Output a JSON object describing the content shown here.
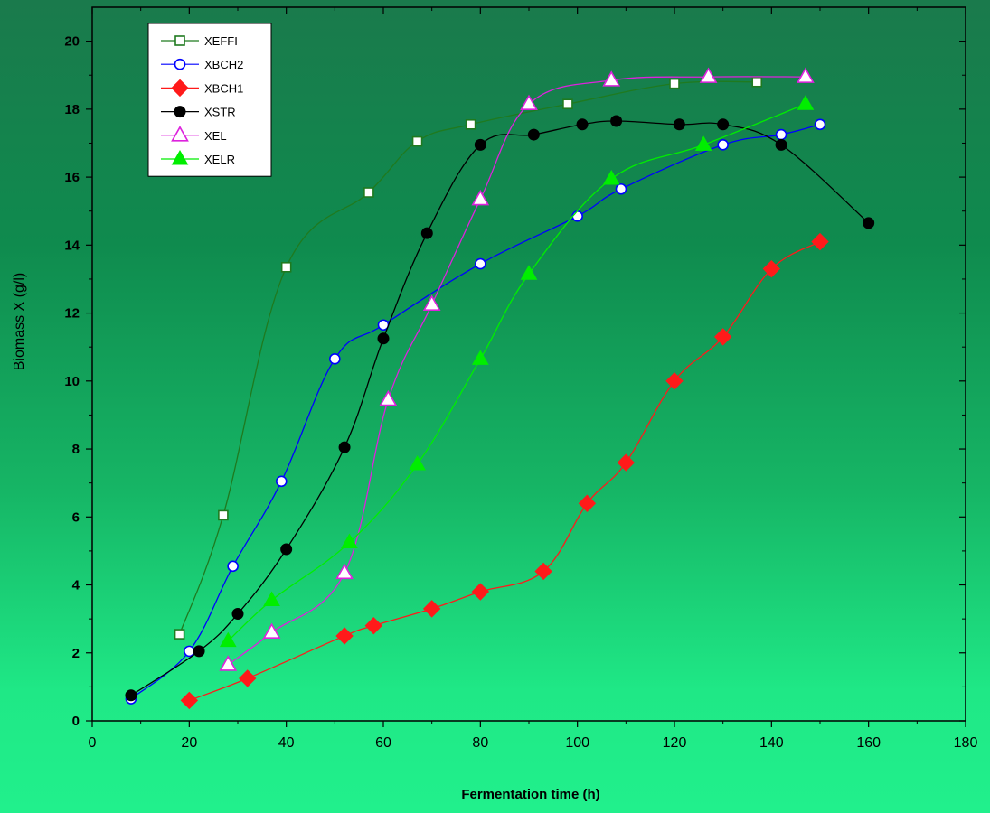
{
  "chart_data": {
    "type": "line",
    "title": "",
    "xlabel": "Fermentation time (h)",
    "ylabel": "Biomass X (g/l)",
    "xlim": [
      0,
      180
    ],
    "ylim": [
      0,
      21
    ],
    "x_ticks": [
      "0",
      "20",
      "40",
      "60",
      "80",
      "100",
      "120",
      "140",
      "160",
      "180"
    ],
    "y_ticks": [
      "0",
      "2",
      "4",
      "6",
      "8",
      "10",
      "12",
      "14",
      "16",
      "18",
      "20"
    ],
    "grid": false,
    "legend_position": "top-left",
    "series": [
      {
        "name": "XEFFI",
        "color": "#1f7a1f",
        "marker": "square-open",
        "points": [
          [
            18,
            2.55
          ],
          [
            27,
            6.05
          ],
          [
            40,
            13.35
          ],
          [
            57,
            15.55
          ],
          [
            67,
            17.05
          ],
          [
            78,
            17.55
          ],
          [
            98,
            18.15
          ],
          [
            120,
            18.75
          ],
          [
            137,
            18.8
          ]
        ]
      },
      {
        "name": "XBCH2",
        "color": "#0000ff",
        "marker": "circle-open",
        "points": [
          [
            8,
            0.65
          ],
          [
            20,
            2.05
          ],
          [
            29,
            4.55
          ],
          [
            39,
            7.05
          ],
          [
            50,
            10.65
          ],
          [
            60,
            11.65
          ],
          [
            80,
            13.45
          ],
          [
            100,
            14.85
          ],
          [
            109,
            15.65
          ],
          [
            130,
            16.95
          ],
          [
            142,
            17.25
          ],
          [
            150,
            17.55
          ]
        ]
      },
      {
        "name": "XBCH1",
        "color": "#ff1a1a",
        "marker": "diamond-filled",
        "points": [
          [
            20,
            0.6
          ],
          [
            32,
            1.25
          ],
          [
            52,
            2.5
          ],
          [
            58,
            2.8
          ],
          [
            70,
            3.3
          ],
          [
            80,
            3.8
          ],
          [
            93,
            4.4
          ],
          [
            102,
            6.4
          ],
          [
            110,
            7.6
          ],
          [
            120,
            10.0
          ],
          [
            130,
            11.3
          ],
          [
            140,
            13.3
          ],
          [
            150,
            14.1
          ]
        ]
      },
      {
        "name": "XSTR",
        "color": "#000000",
        "marker": "circle-filled",
        "points": [
          [
            8,
            0.75
          ],
          [
            22,
            2.05
          ],
          [
            30,
            3.15
          ],
          [
            40,
            5.05
          ],
          [
            52,
            8.05
          ],
          [
            60,
            11.25
          ],
          [
            69,
            14.35
          ],
          [
            80,
            16.95
          ],
          [
            91,
            17.25
          ],
          [
            101,
            17.55
          ],
          [
            108,
            17.65
          ],
          [
            121,
            17.55
          ],
          [
            130,
            17.55
          ],
          [
            142,
            16.95
          ],
          [
            160,
            14.65
          ]
        ]
      },
      {
        "name": "XEL",
        "color": "#dd22dd",
        "marker": "triangle-open",
        "points": [
          [
            28,
            1.65
          ],
          [
            37,
            2.6
          ],
          [
            52,
            4.35
          ],
          [
            61,
            9.45
          ],
          [
            70,
            12.25
          ],
          [
            80,
            15.35
          ],
          [
            90,
            18.15
          ],
          [
            107,
            18.85
          ],
          [
            127,
            18.95
          ],
          [
            147,
            18.95
          ]
        ]
      },
      {
        "name": "XELR",
        "color": "#00ee00",
        "marker": "triangle-filled",
        "points": [
          [
            28,
            2.35
          ],
          [
            37,
            3.55
          ],
          [
            53,
            5.25
          ],
          [
            67,
            7.55
          ],
          [
            80,
            10.65
          ],
          [
            90,
            13.15
          ],
          [
            107,
            15.95
          ],
          [
            126,
            16.95
          ],
          [
            147,
            18.15
          ]
        ]
      }
    ]
  }
}
